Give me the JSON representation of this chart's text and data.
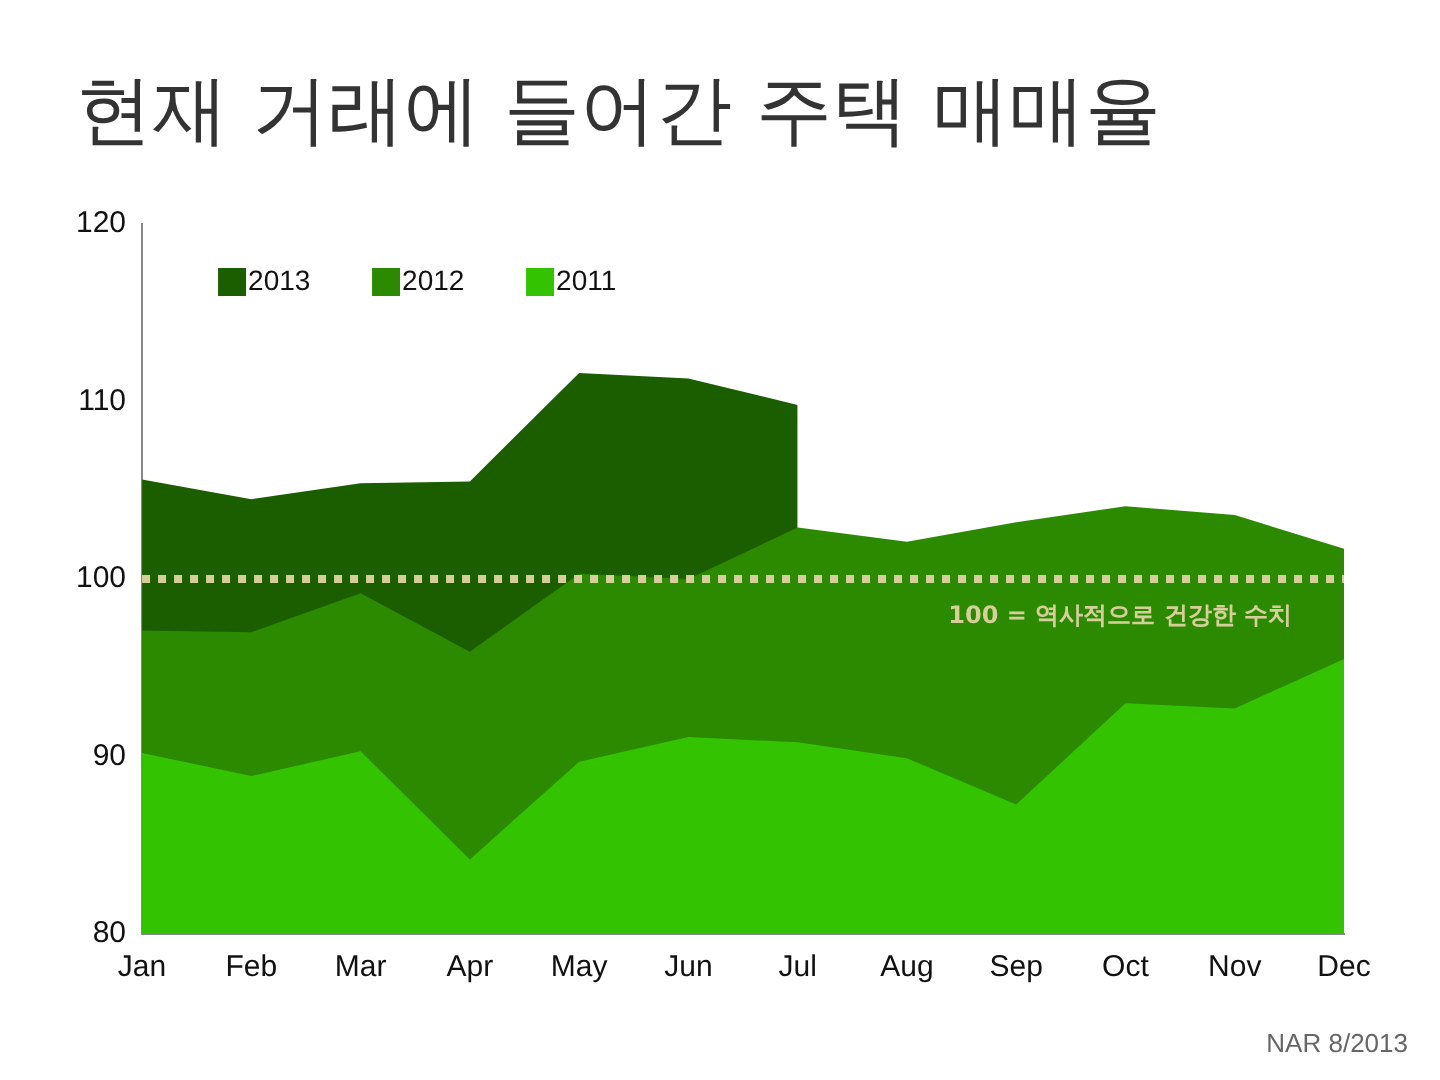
{
  "chart_data": {
    "type": "area",
    "title": "현재 거래에 들어간 주택 매매율",
    "categories": [
      "Jan",
      "Feb",
      "Mar",
      "Apr",
      "May",
      "Jun",
      "Jul",
      "Aug",
      "Sep",
      "Oct",
      "Nov",
      "Dec"
    ],
    "series": [
      {
        "name": "2013",
        "color": "#1b5e00",
        "values": [
          105.6,
          104.5,
          105.4,
          105.5,
          111.6,
          111.3,
          109.8,
          null,
          null,
          null,
          null,
          null
        ]
      },
      {
        "name": "2012",
        "color": "#2b8a00",
        "values": [
          97.1,
          97.0,
          99.2,
          95.9,
          100.3,
          100.0,
          102.9,
          102.1,
          103.2,
          104.1,
          103.6,
          101.7
        ]
      },
      {
        "name": "2011",
        "color": "#33c300",
        "values": [
          90.2,
          88.9,
          90.3,
          84.2,
          89.7,
          91.1,
          90.8,
          89.9,
          87.3,
          93.0,
          92.7,
          95.5
        ]
      }
    ],
    "ylim": [
      80,
      120
    ],
    "yticks": [
      80,
      90,
      100,
      110,
      120
    ],
    "grid": false,
    "legend": "top left",
    "ref_lines": [
      {
        "axis": "y",
        "value": 100,
        "label": "100 = 역사적으로 건강한 수치",
        "color": "#d6cf9c",
        "line_style": "dotted"
      }
    ],
    "annotations": [
      "NAR 8/2013"
    ]
  }
}
